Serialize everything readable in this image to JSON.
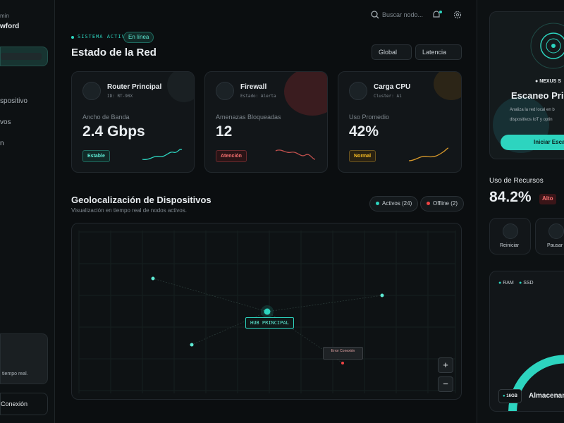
{
  "sidebar": {
    "user_role": "min",
    "user_name": "wford",
    "nav": [
      "spositivo",
      "vos",
      "n"
    ],
    "info_text": "tiempo real.",
    "connection_button": "Conexión"
  },
  "header": {
    "search_placeholder": "Buscar nodo...",
    "status": "SISTEMA ACTIVO",
    "status_badge": "En línea",
    "title": "Estado de la Red",
    "filters": [
      "Global",
      "Latencia"
    ]
  },
  "cards": [
    {
      "title": "Router Principal",
      "subtitle": "ID: RT-90X",
      "metric_label": "Ancho de Banda",
      "metric_value": "2.4 Gbps",
      "badge": "Estable"
    },
    {
      "title": "Firewall",
      "subtitle": "Estado: Alerta",
      "metric_label": "Amenazas Bloqueadas",
      "metric_value": "12",
      "badge": "Atención"
    },
    {
      "title": "Carga CPU",
      "subtitle": "Cluster: A1",
      "metric_label": "Uso Promedio",
      "metric_value": "42%",
      "badge": "Normal"
    }
  ],
  "map": {
    "title": "Geolocalización de Dispositivos",
    "subtitle": "Visualización en tiempo real de nodos activos.",
    "filters": [
      "Activos (24)",
      "Offline (2)"
    ],
    "nodes": [
      {
        "label": "HUB PRINCIPAL"
      },
      {
        "label": "Error Conexión"
      }
    ],
    "zoom": [
      "+",
      "−"
    ]
  },
  "right_panel": {
    "scan": {
      "badge": "NEXUS S",
      "title": "Escaneo Pri",
      "description": [
        "Analiza la red local en b",
        "dispositivos IoT y optin"
      ],
      "button": "Iniciar Esca"
    },
    "resources": {
      "title": "Uso de Recursos",
      "value": "84.2%",
      "badge": "Alto",
      "actions": [
        "Reiniciar",
        "Pausar"
      ]
    },
    "storage": {
      "legend": [
        "RAM",
        "SSD"
      ],
      "chip": "16GB",
      "title": "Almacenam"
    }
  }
}
